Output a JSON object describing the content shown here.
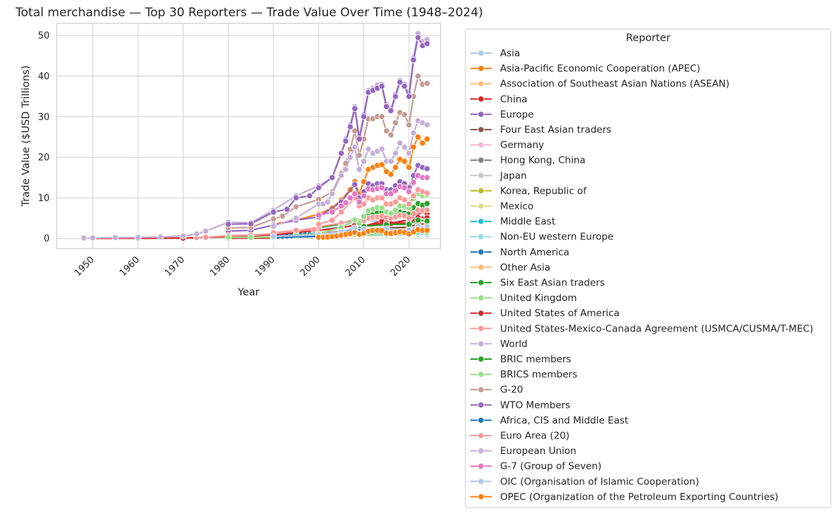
{
  "chart_data": {
    "type": "line",
    "title": "Total merchandise — Top 30 Reporters — Trade Value Over Time (1948–2024)",
    "xlabel": "Year",
    "ylabel": "Trade Value ($USD Trillions)",
    "xlim": [
      1942,
      2027
    ],
    "ylim": [
      -2.5,
      53
    ],
    "xticks": [
      1950,
      1960,
      1970,
      1980,
      1990,
      2000,
      2010,
      2020
    ],
    "yticks": [
      0,
      10,
      20,
      30,
      40,
      50
    ],
    "grid": true,
    "legend": {
      "title": "Reporter",
      "placement": "outside-right"
    },
    "series": [
      {
        "name": "Asia",
        "color": "#aec7e8",
        "x": [
          2000,
          2005,
          2008,
          2009,
          2010,
          2015,
          2020,
          2022,
          2024
        ],
        "values": [
          2.0,
          3.0,
          4.0,
          3.5,
          4.5,
          4.0,
          4.5,
          5.5,
          5.5
        ]
      },
      {
        "name": "Asia-Pacific Economic Cooperation (APEC)",
        "color": "#ff7f0e",
        "x": [
          1990,
          1995,
          2000,
          2003,
          2005,
          2007,
          2008,
          2009,
          2010,
          2011,
          2012,
          2013,
          2014,
          2015,
          2016,
          2017,
          2018,
          2019,
          2020,
          2021,
          2022,
          2023,
          2024
        ],
        "values": [
          3.5,
          4.5,
          6.0,
          7.5,
          9.5,
          12.0,
          14.0,
          11.0,
          14.0,
          17.0,
          17.5,
          18.0,
          18.2,
          16.5,
          15.8,
          17.5,
          19.5,
          19.0,
          17.5,
          22.5,
          25.0,
          23.5,
          24.5
        ]
      },
      {
        "name": "Association of Southeast Asian Nations (ASEAN)",
        "color": "#ffbb78",
        "x": [
          1990,
          2000,
          2008,
          2010,
          2015,
          2020,
          2022,
          2024
        ],
        "values": [
          0.3,
          0.8,
          1.8,
          2.0,
          2.3,
          2.6,
          3.5,
          3.6
        ]
      },
      {
        "name": "China",
        "color": "#d62728",
        "x": [
          1980,
          1990,
          2000,
          2005,
          2008,
          2010,
          2014,
          2016,
          2020,
          2022,
          2024
        ],
        "values": [
          0.05,
          0.1,
          0.5,
          1.4,
          2.6,
          3.0,
          4.3,
          3.7,
          4.6,
          6.3,
          6.2
        ]
      },
      {
        "name": "Europe",
        "color": "#9467bd",
        "x": [
          1980,
          1985,
          1990,
          1995,
          2000,
          2005,
          2008,
          2009,
          2010,
          2011,
          2012,
          2013,
          2014,
          2015,
          2016,
          2017,
          2018,
          2019,
          2020,
          2021,
          2022,
          2023,
          2024
        ],
        "values": [
          1.8,
          2.0,
          3.3,
          4.5,
          5.3,
          9.0,
          13.3,
          10.0,
          11.5,
          13.5,
          13.0,
          13.5,
          13.5,
          12.0,
          12.0,
          13.0,
          14.0,
          13.5,
          12.5,
          15.5,
          18.0,
          17.5,
          17.2
        ]
      },
      {
        "name": "Four East Asian traders",
        "color": "#8c564b",
        "x": [
          1990,
          2000,
          2008,
          2010,
          2015,
          2020,
          2022,
          2024
        ],
        "values": [
          0.6,
          1.3,
          2.0,
          2.3,
          2.6,
          2.8,
          3.6,
          3.5
        ]
      },
      {
        "name": "Germany",
        "color": "#f7b6d2",
        "x": [
          1960,
          1970,
          1980,
          1990,
          2000,
          2008,
          2010,
          2015,
          2020,
          2022,
          2024
        ],
        "values": [
          0.02,
          0.05,
          0.35,
          0.7,
          1.1,
          2.0,
          1.9,
          2.0,
          2.1,
          2.7,
          2.6
        ]
      },
      {
        "name": "Hong Kong, China",
        "color": "#7f7f7f",
        "x": [
          1990,
          2000,
          2010,
          2015,
          2020,
          2022,
          2024
        ],
        "values": [
          0.16,
          0.4,
          0.8,
          1.0,
          1.1,
          1.3,
          1.2
        ]
      },
      {
        "name": "Japan",
        "color": "#c7c7c7",
        "x": [
          1960,
          1970,
          1980,
          1990,
          2000,
          2010,
          2015,
          2020,
          2022,
          2024
        ],
        "values": [
          0.01,
          0.04,
          0.27,
          0.5,
          0.8,
          1.5,
          1.3,
          1.3,
          1.6,
          1.5
        ]
      },
      {
        "name": "Korea, Republic of",
        "color": "#bcbd22",
        "x": [
          1990,
          2000,
          2010,
          2015,
          2020,
          2022,
          2024
        ],
        "values": [
          0.14,
          0.33,
          0.9,
          1.0,
          1.0,
          1.4,
          1.3
        ]
      },
      {
        "name": "Mexico",
        "color": "#dbdb8d",
        "x": [
          1990,
          2000,
          2010,
          2015,
          2020,
          2022,
          2024
        ],
        "values": [
          0.08,
          0.35,
          0.6,
          0.8,
          0.8,
          1.2,
          1.2
        ]
      },
      {
        "name": "Middle East",
        "color": "#17becf",
        "x": [
          1990,
          2000,
          2008,
          2010,
          2015,
          2020,
          2022,
          2024
        ],
        "values": [
          0.2,
          0.4,
          1.5,
          1.4,
          1.4,
          1.2,
          2.0,
          1.9
        ]
      },
      {
        "name": "Non-EU western Europe",
        "color": "#9edae5",
        "x": [
          1990,
          2000,
          2010,
          2015,
          2020,
          2022,
          2024
        ],
        "values": [
          0.4,
          0.5,
          0.9,
          0.8,
          0.8,
          1.0,
          1.0
        ]
      },
      {
        "name": "North America",
        "color": "#1f77b4",
        "x": [
          1991,
          1992,
          1993,
          1994,
          1995,
          1996,
          1997,
          1998,
          1999
        ],
        "values": [
          0.5,
          0.55,
          0.6,
          0.65,
          0.75,
          0.8,
          0.85,
          0.9,
          0.9
        ]
      },
      {
        "name": "Other Asia",
        "color": "#ffbb78",
        "x": [
          1990,
          2000,
          2010,
          2015,
          2020,
          2022,
          2024
        ],
        "values": [
          0.5,
          0.9,
          1.8,
          2.0,
          2.1,
          2.6,
          2.6
        ]
      },
      {
        "name": "Six East Asian traders",
        "color": "#2ca02c",
        "x": [
          2000,
          2005,
          2008,
          2009,
          2010,
          2011,
          2012,
          2013,
          2014,
          2015,
          2016,
          2017,
          2018,
          2019,
          2020,
          2021,
          2022,
          2023,
          2024
        ],
        "values": [
          2.6,
          3.6,
          4.7,
          4.0,
          5.4,
          6.0,
          6.2,
          6.5,
          6.4,
          5.6,
          5.2,
          5.8,
          6.5,
          6.2,
          6.0,
          7.6,
          8.6,
          8.2,
          8.6
        ]
      },
      {
        "name": "United Kingdom",
        "color": "#98df8a",
        "x": [
          1990,
          2000,
          2010,
          2015,
          2020,
          2022,
          2024
        ],
        "values": [
          0.4,
          0.6,
          1.0,
          1.1,
          1.0,
          1.5,
          1.5
        ]
      },
      {
        "name": "United States of America",
        "color": "#d62728",
        "x": [
          1950,
          1960,
          1970,
          1980,
          1990,
          2000,
          2005,
          2008,
          2009,
          2010,
          2015,
          2020,
          2022,
          2024
        ],
        "values": [
          0.02,
          0.04,
          0.08,
          0.47,
          0.9,
          2.0,
          2.6,
          3.3,
          2.6,
          3.2,
          3.8,
          3.8,
          5.2,
          5.1
        ]
      },
      {
        "name": "United States-Mexico-Canada Agreement (USMCA/CUSMA/T-MEC)",
        "color": "#ff9896",
        "x": [
          1973,
          1975,
          1980,
          1985,
          1990,
          1995,
          2000,
          2005,
          2008,
          2009,
          2010,
          2011,
          2012,
          2013,
          2014,
          2015,
          2016,
          2017,
          2018,
          2019,
          2020,
          2021,
          2022,
          2023,
          2024
        ],
        "values": [
          0.2,
          0.3,
          0.7,
          0.8,
          1.2,
          1.8,
          2.9,
          3.8,
          4.5,
          3.6,
          4.4,
          5.0,
          5.2,
          5.3,
          5.5,
          5.2,
          5.0,
          5.3,
          5.7,
          5.6,
          5.0,
          6.1,
          7.0,
          6.9,
          7.0
        ]
      },
      {
        "name": "World",
        "color": "#c5b0d5",
        "x": [
          1948,
          1950,
          1955,
          1960,
          1965,
          1970,
          1973,
          1975,
          1980,
          1985,
          1990,
          1995,
          2000,
          2003,
          2005,
          2006,
          2007,
          2008,
          2009,
          2010,
          2011,
          2012,
          2013,
          2014,
          2015,
          2016,
          2017,
          2018,
          2019,
          2020,
          2021,
          2022,
          2023,
          2024
        ],
        "values": [
          0.12,
          0.12,
          0.2,
          0.26,
          0.37,
          0.63,
          1.1,
          1.8,
          4.0,
          3.9,
          7.0,
          10.5,
          13.0,
          15.0,
          21.0,
          24.5,
          28.0,
          32.5,
          25.0,
          30.5,
          36.5,
          37.0,
          37.8,
          38.0,
          33.0,
          32.0,
          35.5,
          39.0,
          38.0,
          35.5,
          44.5,
          50.5,
          48.5,
          49.0
        ]
      },
      {
        "name": "BRIC members",
        "color": "#2ca02c",
        "x": [
          2000,
          2005,
          2010,
          2015,
          2020,
          2022,
          2024
        ],
        "values": [
          0.7,
          1.5,
          3.0,
          3.4,
          3.5,
          4.5,
          4.3
        ]
      },
      {
        "name": "BRICS members",
        "color": "#98df8a",
        "x": [
          1980,
          1985,
          1990,
          1995,
          2000,
          2005,
          2008,
          2009,
          2010,
          2011,
          2012,
          2013,
          2014,
          2015,
          2016,
          2017,
          2018,
          2019,
          2020,
          2021,
          2022,
          2023,
          2024
        ],
        "values": [
          0.3,
          0.25,
          0.35,
          0.8,
          1.2,
          2.7,
          4.6,
          3.7,
          5.4,
          6.8,
          7.2,
          7.6,
          7.5,
          6.5,
          6.2,
          7.0,
          8.0,
          7.8,
          7.5,
          9.8,
          11.0,
          10.5,
          10.7
        ]
      },
      {
        "name": "G-20",
        "color": "#c49c94",
        "x": [
          1980,
          1985,
          1990,
          1992,
          1995,
          2000,
          2003,
          2005,
          2006,
          2007,
          2008,
          2009,
          2010,
          2011,
          2012,
          2013,
          2014,
          2015,
          2016,
          2017,
          2018,
          2019,
          2020,
          2021,
          2022,
          2023,
          2024
        ],
        "values": [
          2.6,
          2.7,
          4.8,
          5.5,
          7.8,
          9.6,
          11.5,
          16.0,
          18.5,
          22.0,
          26.5,
          20.5,
          24.5,
          29.5,
          29.5,
          30.0,
          30.0,
          26.5,
          25.5,
          28.5,
          31.0,
          30.5,
          28.0,
          35.0,
          40.0,
          38.0,
          38.2
        ]
      },
      {
        "name": "WTO Members",
        "color": "#9467bd",
        "x": [
          1980,
          1985,
          1990,
          1993,
          1995,
          1998,
          2000,
          2003,
          2005,
          2006,
          2007,
          2008,
          2009,
          2010,
          2011,
          2012,
          2013,
          2014,
          2015,
          2016,
          2017,
          2018,
          2019,
          2020,
          2021,
          2022,
          2023,
          2024
        ],
        "values": [
          3.5,
          3.6,
          6.5,
          7.2,
          10.0,
          10.5,
          12.5,
          15.0,
          21.0,
          24.0,
          27.5,
          32.0,
          24.5,
          30.0,
          36.0,
          36.5,
          37.0,
          37.5,
          32.5,
          31.5,
          35.0,
          38.5,
          37.5,
          35.0,
          44.0,
          49.5,
          47.5,
          48.0
        ]
      },
      {
        "name": "Africa, CIS and Middle East",
        "color": "#1f77b4",
        "x": [
          1990,
          2000,
          2005,
          2008,
          2010,
          2015,
          2020,
          2022,
          2024
        ],
        "values": [
          0.3,
          0.5,
          1.2,
          2.4,
          2.0,
          1.8,
          1.4,
          2.5,
          2.3
        ]
      },
      {
        "name": "Euro Area (20)",
        "color": "#ff9896",
        "x": [
          1990,
          1995,
          1999,
          2000,
          2003,
          2005,
          2008,
          2009,
          2010,
          2011,
          2012,
          2013,
          2014,
          2015,
          2016,
          2017,
          2018,
          2019,
          2020,
          2021,
          2022,
          2023,
          2024
        ],
        "values": [
          1.4,
          2.0,
          2.2,
          3.5,
          4.5,
          6.5,
          10.0,
          8.0,
          8.5,
          10.0,
          9.5,
          10.0,
          10.0,
          8.5,
          8.5,
          9.0,
          10.0,
          9.5,
          8.5,
          10.5,
          12.0,
          11.5,
          11.2
        ]
      },
      {
        "name": "European Union",
        "color": "#c5b0d5",
        "x": [
          1990,
          1995,
          2000,
          2001,
          2002,
          2003,
          2005,
          2006,
          2007,
          2008,
          2009,
          2010,
          2011,
          2012,
          2013,
          2014,
          2015,
          2016,
          2017,
          2018,
          2019,
          2020,
          2021,
          2022,
          2023,
          2024
        ],
        "values": [
          3.0,
          5.0,
          8.5,
          8.5,
          9.0,
          11.0,
          15.5,
          17.0,
          20.0,
          22.5,
          17.0,
          19.0,
          22.0,
          21.0,
          21.5,
          22.0,
          19.0,
          19.0,
          21.0,
          23.5,
          22.5,
          21.0,
          26.0,
          29.0,
          28.5,
          28.0
        ]
      },
      {
        "name": "G-7 (Group of Seven)",
        "color": "#e377c2",
        "x": [
          2000,
          2003,
          2005,
          2006,
          2007,
          2008,
          2009,
          2010,
          2011,
          2012,
          2013,
          2014,
          2015,
          2016,
          2017,
          2018,
          2019,
          2020,
          2021,
          2022,
          2023,
          2024
        ],
        "values": [
          5.7,
          6.5,
          8.0,
          8.8,
          10.0,
          11.0,
          9.0,
          10.5,
          12.2,
          12.0,
          12.3,
          12.5,
          11.0,
          11.0,
          11.8,
          12.8,
          12.5,
          11.5,
          13.8,
          15.5,
          15.0,
          15.0
        ]
      },
      {
        "name": "OIC (Organisation of Islamic Cooperation)",
        "color": "#aec7e8",
        "x": [
          1990,
          2000,
          2005,
          2008,
          2010,
          2015,
          2020,
          2022,
          2024
        ],
        "values": [
          0.5,
          0.9,
          1.6,
          2.6,
          2.3,
          2.4,
          2.1,
          3.0,
          2.9
        ]
      },
      {
        "name": "OPEC (Organization of the Petroleum Exporting Countries)",
        "color": "#ff7f0e",
        "x": [
          2000,
          2001,
          2002,
          2003,
          2004,
          2005,
          2006,
          2007,
          2008,
          2009,
          2010,
          2011,
          2012,
          2013,
          2014,
          2015,
          2016,
          2017,
          2018,
          2019,
          2020,
          2021,
          2022,
          2023,
          2024
        ],
        "values": [
          0.3,
          0.3,
          0.35,
          0.45,
          0.6,
          0.8,
          1.0,
          1.2,
          1.5,
          1.0,
          1.3,
          1.8,
          2.0,
          2.0,
          1.9,
          1.3,
          1.2,
          1.4,
          1.6,
          1.5,
          1.1,
          1.6,
          2.2,
          2.0,
          2.0
        ]
      }
    ]
  }
}
